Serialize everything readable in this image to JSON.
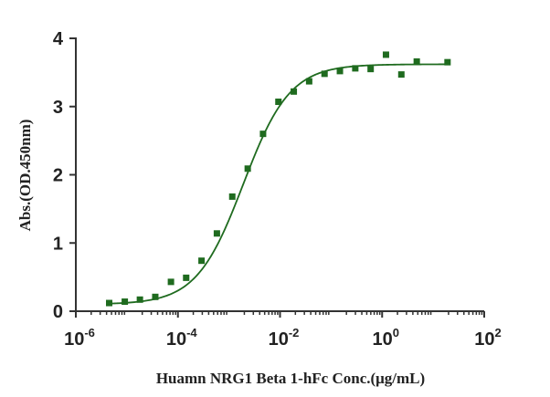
{
  "chart_data": {
    "type": "scatter",
    "title": "",
    "xlabel": "Huamn NRG1 Beta 1-hFc Conc.(μg/mL)",
    "ylabel": "Abs.(OD.450nm)",
    "xscale": "log",
    "xlim": [
      1e-06,
      100
    ],
    "ylim": [
      0,
      4
    ],
    "x_ticks": [
      {
        "value": 1e-06,
        "base": "10",
        "exp": "-6"
      },
      {
        "value": 0.0001,
        "base": "10",
        "exp": "-4"
      },
      {
        "value": 0.01,
        "base": "10",
        "exp": "-2"
      },
      {
        "value": 1,
        "base": "10",
        "exp": "0"
      },
      {
        "value": 100,
        "base": "10",
        "exp": "2"
      }
    ],
    "y_ticks": [
      {
        "value": 0,
        "label": "0"
      },
      {
        "value": 1,
        "label": "1"
      },
      {
        "value": 2,
        "label": "2"
      },
      {
        "value": 3,
        "label": "3"
      },
      {
        "value": 4,
        "label": "4"
      }
    ],
    "grid": false,
    "legend": "none",
    "colors": {
      "points": "#1f6b1f",
      "curve": "#1f6b1f",
      "axis": "#333333"
    },
    "series": [
      {
        "x": [
          4.5e-06,
          9.1e-06,
          1.8e-05,
          3.6e-05,
          7.3e-05,
          0.000145,
          0.00029,
          0.00058,
          0.00116,
          0.00233,
          0.00465,
          0.0093,
          0.0186,
          0.0372,
          0.0745,
          0.149,
          0.298,
          0.596,
          1.19,
          2.38,
          4.77,
          19.1
        ],
        "y": [
          0.12,
          0.14,
          0.17,
          0.21,
          0.43,
          0.49,
          0.74,
          1.14,
          1.68,
          2.09,
          2.6,
          3.07,
          3.22,
          3.37,
          3.48,
          3.52,
          3.56,
          3.55,
          3.76,
          3.47,
          3.66,
          3.65
        ]
      }
    ],
    "fit_curve": {
      "model": "4PL",
      "bottom": 0.1,
      "top": 3.62,
      "ec50": 0.0019,
      "hill": 0.95
    }
  }
}
